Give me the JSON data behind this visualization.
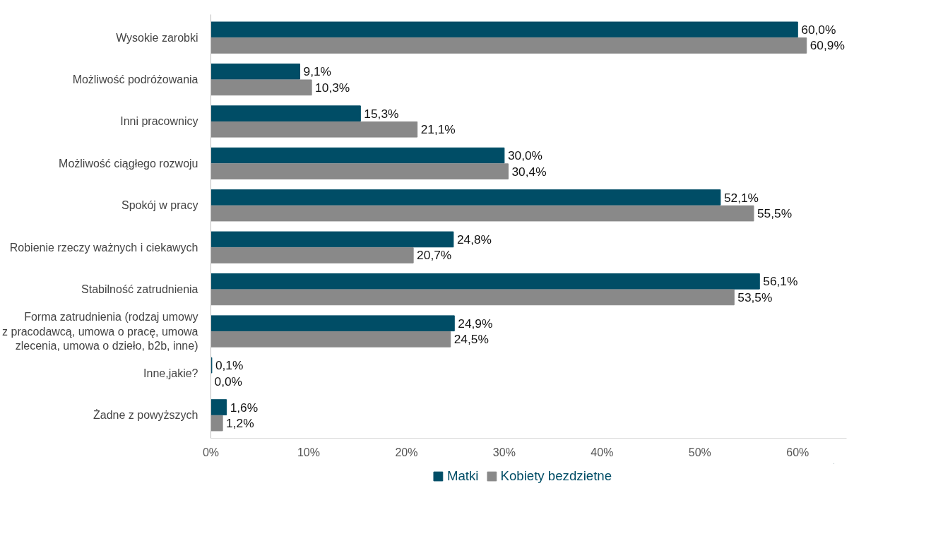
{
  "chart_data": {
    "type": "bar",
    "orientation": "horizontal",
    "categories": [
      "Wysokie zarobki",
      "Możliwość podróżowania",
      "Inni pracownicy",
      "Możliwość ciągłego rozwoju",
      "Spokój w pracy",
      "Robienie rzeczy ważnych i ciekawych",
      "Stabilność zatrudnienia",
      "Forma zatrudnienia (rodzaj umowy\nz pracodawcą, umowa o pracę, umowa\nzlecenia, umowa o dzieło, b2b, inne)",
      "Inne,jakie?",
      "Żadne z powyższych"
    ],
    "series": [
      {
        "name": "Matki",
        "color": "#004d66",
        "values": [
          60.0,
          9.1,
          15.3,
          30.0,
          52.1,
          24.8,
          56.1,
          24.9,
          0.1,
          1.6
        ],
        "value_labels": [
          "60,0%",
          "9,1%",
          "15,3%",
          "30,0%",
          "52,1%",
          "24,8%",
          "56,1%",
          "24,9%",
          "0,1%",
          "1,6%"
        ]
      },
      {
        "name": "Kobiety bezdzietne",
        "color": "#898989",
        "values": [
          60.9,
          10.3,
          21.1,
          30.4,
          55.5,
          20.7,
          53.5,
          24.5,
          0.0,
          1.2
        ],
        "value_labels": [
          "60,9%",
          "10,3%",
          "21,1%",
          "30,4%",
          "55,5%",
          "20,7%",
          "53,5%",
          "24,5%",
          "0,0%",
          "1,2%"
        ]
      }
    ],
    "xlim": [
      0,
      65
    ],
    "xticks": [
      {
        "value": 0,
        "label": "0%"
      },
      {
        "value": 10,
        "label": "10%"
      },
      {
        "value": 20,
        "label": "20%"
      },
      {
        "value": 30,
        "label": "30%"
      },
      {
        "value": 40,
        "label": "40%"
      },
      {
        "value": 50,
        "label": "50%"
      },
      {
        "value": 60,
        "label": "60%"
      }
    ],
    "grid": false,
    "legend": "bottom"
  }
}
